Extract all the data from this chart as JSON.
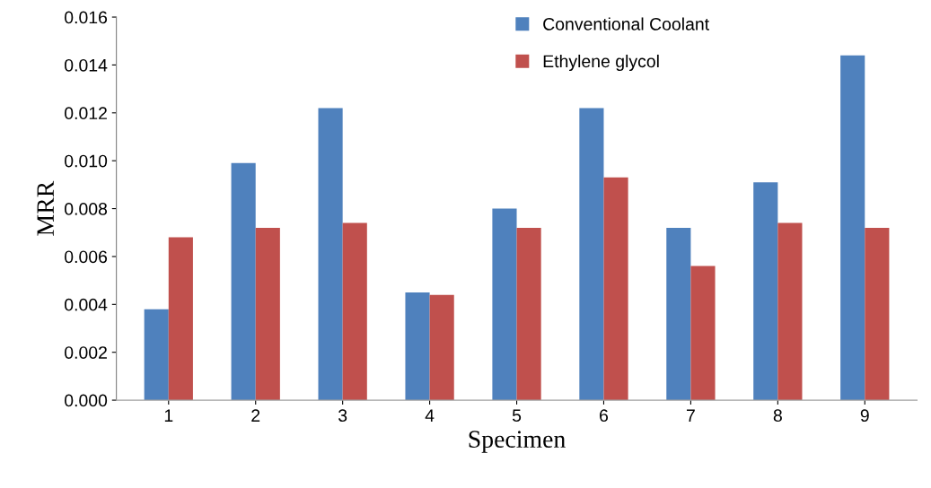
{
  "chart_data": {
    "type": "bar",
    "xlabel": "Specimen",
    "ylabel": "MRR",
    "categories": [
      "1",
      "2",
      "3",
      "4",
      "5",
      "6",
      "7",
      "8",
      "9"
    ],
    "series": [
      {
        "name": "Conventional Coolant",
        "color": "#4f81bd",
        "values": [
          0.0038,
          0.0099,
          0.0122,
          0.0045,
          0.008,
          0.0122,
          0.0072,
          0.0091,
          0.0144
        ]
      },
      {
        "name": "Ethylene glycol",
        "color": "#c0504d",
        "values": [
          0.0068,
          0.0072,
          0.0074,
          0.0044,
          0.0072,
          0.0093,
          0.0056,
          0.0074,
          0.0072
        ]
      }
    ],
    "ylim": [
      0,
      0.016
    ],
    "yticks": [
      {
        "value": 0,
        "label": "0.000"
      },
      {
        "value": 0.002,
        "label": "0.002"
      },
      {
        "value": 0.004,
        "label": "0.004"
      },
      {
        "value": 0.006,
        "label": "0.006"
      },
      {
        "value": 0.008,
        "label": "0.008"
      },
      {
        "value": 0.01,
        "label": "0.010"
      },
      {
        "value": 0.012,
        "label": "0.012"
      },
      {
        "value": 0.014,
        "label": "0.014"
      },
      {
        "value": 0.016,
        "label": "0.016"
      }
    ],
    "grid": false,
    "legend": "top"
  }
}
